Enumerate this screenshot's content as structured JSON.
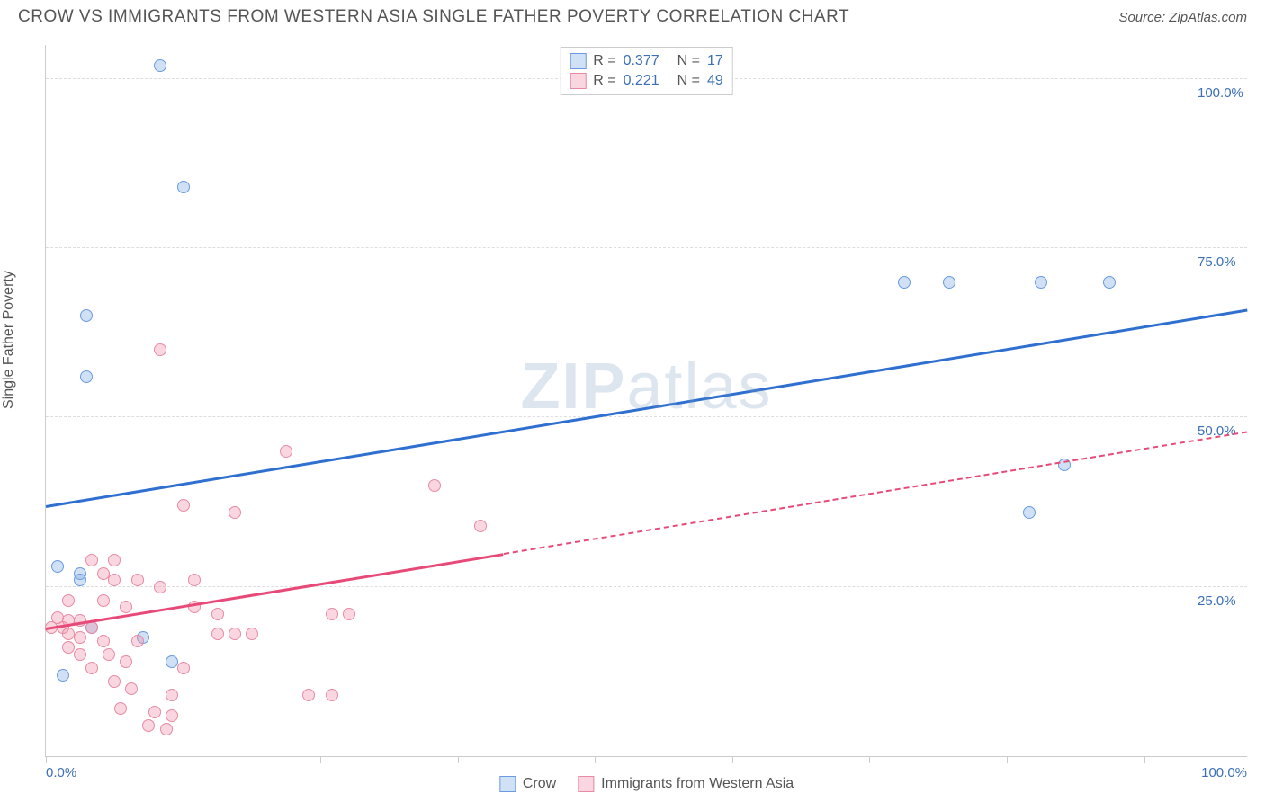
{
  "header": {
    "title": "CROW VS IMMIGRANTS FROM WESTERN ASIA SINGLE FATHER POVERTY CORRELATION CHART",
    "source": "Source: ZipAtlas.com"
  },
  "watermark": {
    "bold": "ZIP",
    "light": "atlas"
  },
  "chart": {
    "type": "scatter",
    "y_axis_title": "Single Father Poverty",
    "xlim": [
      0,
      105
    ],
    "ylim": [
      0,
      105
    ],
    "y_ticks": [
      25,
      50,
      75,
      100
    ],
    "y_tick_labels": [
      "25.0%",
      "50.0%",
      "75.0%",
      "100.0%"
    ],
    "x_tick_positions": [
      0,
      12,
      24,
      36,
      48,
      60,
      72,
      84,
      96
    ],
    "x_end_labels": {
      "min": "0.0%",
      "max": "100.0%"
    },
    "grid_color": "#dddddd",
    "axis_color": "#cccccc",
    "label_color": "#3b6fb6",
    "background_color": "#ffffff",
    "point_radius": 7,
    "series": [
      {
        "id": "crow",
        "name": "Crow",
        "fill": "rgba(120, 165, 225, 0.35)",
        "stroke": "#6a9be0",
        "trend_color": "#2f6fd0",
        "r_value": "0.377",
        "n_value": "17",
        "trend": {
          "x1": 0,
          "y1": 37,
          "x2": 105,
          "y2": 66,
          "dashed": false
        },
        "points": [
          {
            "x": 10,
            "y": 102
          },
          {
            "x": 12,
            "y": 84
          },
          {
            "x": 3.5,
            "y": 65
          },
          {
            "x": 3.5,
            "y": 56
          },
          {
            "x": 1,
            "y": 28
          },
          {
            "x": 3,
            "y": 27
          },
          {
            "x": 3,
            "y": 26
          },
          {
            "x": 8.5,
            "y": 17.5
          },
          {
            "x": 11,
            "y": 14
          },
          {
            "x": 1.5,
            "y": 12
          },
          {
            "x": 75,
            "y": 70
          },
          {
            "x": 79,
            "y": 70
          },
          {
            "x": 87,
            "y": 70
          },
          {
            "x": 93,
            "y": 70
          },
          {
            "x": 89,
            "y": 43
          },
          {
            "x": 86,
            "y": 36
          },
          {
            "x": 4,
            "y": 19
          }
        ]
      },
      {
        "id": "immigrants",
        "name": "Immigrants from Western Asia",
        "fill": "rgba(240, 140, 165, 0.35)",
        "stroke": "#e88aa2",
        "trend_color": "#e74a78",
        "r_value": "0.221",
        "n_value": "49",
        "trend_solid": {
          "x1": 0,
          "y1": 19,
          "x2": 40,
          "y2": 30
        },
        "trend_dash": {
          "x1": 40,
          "y1": 30,
          "x2": 105,
          "y2": 48
        },
        "points": [
          {
            "x": 10,
            "y": 60
          },
          {
            "x": 21,
            "y": 45
          },
          {
            "x": 34,
            "y": 40
          },
          {
            "x": 12,
            "y": 37
          },
          {
            "x": 16.5,
            "y": 36
          },
          {
            "x": 38,
            "y": 34
          },
          {
            "x": 4,
            "y": 29
          },
          {
            "x": 6,
            "y": 29
          },
          {
            "x": 5,
            "y": 27
          },
          {
            "x": 6,
            "y": 26
          },
          {
            "x": 8,
            "y": 26
          },
          {
            "x": 13,
            "y": 26
          },
          {
            "x": 10,
            "y": 25
          },
          {
            "x": 2,
            "y": 23
          },
          {
            "x": 5,
            "y": 23
          },
          {
            "x": 7,
            "y": 22
          },
          {
            "x": 13,
            "y": 22
          },
          {
            "x": 15,
            "y": 21
          },
          {
            "x": 25,
            "y": 21
          },
          {
            "x": 26.5,
            "y": 21
          },
          {
            "x": 1,
            "y": 20.5
          },
          {
            "x": 2,
            "y": 20
          },
          {
            "x": 3,
            "y": 20
          },
          {
            "x": 0.5,
            "y": 19
          },
          {
            "x": 1.5,
            "y": 19
          },
          {
            "x": 4,
            "y": 19
          },
          {
            "x": 2,
            "y": 18
          },
          {
            "x": 3,
            "y": 17.5
          },
          {
            "x": 5,
            "y": 17
          },
          {
            "x": 8,
            "y": 17
          },
          {
            "x": 15,
            "y": 18
          },
          {
            "x": 16.5,
            "y": 18
          },
          {
            "x": 18,
            "y": 18
          },
          {
            "x": 3,
            "y": 15
          },
          {
            "x": 5.5,
            "y": 15
          },
          {
            "x": 7,
            "y": 14
          },
          {
            "x": 12,
            "y": 13
          },
          {
            "x": 6,
            "y": 11
          },
          {
            "x": 7.5,
            "y": 10
          },
          {
            "x": 11,
            "y": 9
          },
          {
            "x": 23,
            "y": 9
          },
          {
            "x": 25,
            "y": 9
          },
          {
            "x": 6.5,
            "y": 7
          },
          {
            "x": 9.5,
            "y": 6.5
          },
          {
            "x": 11,
            "y": 6
          },
          {
            "x": 9,
            "y": 4.5
          },
          {
            "x": 10.5,
            "y": 4
          },
          {
            "x": 4,
            "y": 13
          },
          {
            "x": 2,
            "y": 16
          }
        ]
      }
    ],
    "legend_top": {
      "r_label": "R =",
      "n_label": "N ="
    },
    "legend_bottom": [
      {
        "series": "crow"
      },
      {
        "series": "immigrants"
      }
    ]
  }
}
